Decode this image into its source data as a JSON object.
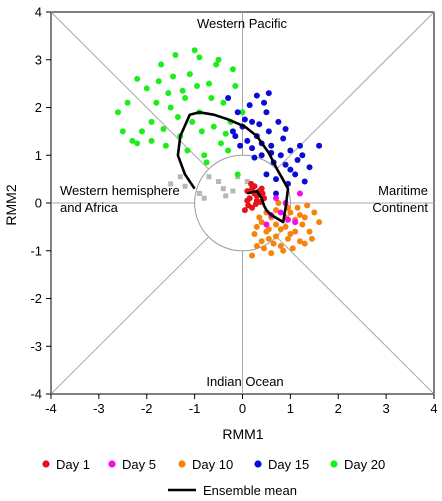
{
  "chart_data": {
    "type": "scatter",
    "xlabel": "RMM1",
    "ylabel": "RMM2",
    "xlim": [
      -4,
      4
    ],
    "ylim": [
      -4,
      4
    ],
    "xticks": [
      "-4",
      "-3",
      "-2",
      "-1",
      "0",
      "1",
      "2",
      "3",
      "4"
    ],
    "yticks": [
      "-4",
      "-3",
      "-2",
      "-1",
      "0",
      "1",
      "2",
      "3",
      "4"
    ],
    "grid": false,
    "inner_circle_radius": 1,
    "region_labels": {
      "top": "Western Pacific",
      "bottom": "Indian Ocean",
      "left_line1": "Western hemisphere",
      "left_line2": "and Africa",
      "right_line1": "Maritime",
      "right_line2": "Continent"
    },
    "legend_position": "bottom",
    "series": [
      {
        "name": "Day 1",
        "color": "#e8121a",
        "points": [
          [
            0.1,
            0.25
          ],
          [
            0.2,
            0.3
          ],
          [
            0.25,
            0.2
          ],
          [
            0.3,
            0.15
          ],
          [
            0.15,
            0.1
          ],
          [
            0.35,
            0.25
          ],
          [
            0.4,
            0.3
          ],
          [
            0.2,
            -0.1
          ],
          [
            0.1,
            0.05
          ],
          [
            0.3,
            0.05
          ],
          [
            0.25,
            0.35
          ],
          [
            0.45,
            0.1
          ],
          [
            0.05,
            -0.15
          ],
          [
            0.38,
            0.02
          ],
          [
            0.18,
            0.4
          ],
          [
            0.12,
            -0.05
          ],
          [
            0.42,
            0.2
          ],
          [
            0.28,
            -0.02
          ]
        ]
      },
      {
        "name": "Day 5",
        "color": "#f50af5",
        "points": [
          [
            0.8,
            -0.2
          ],
          [
            0.95,
            -0.35
          ],
          [
            1.1,
            -0.4
          ],
          [
            0.7,
            0.1
          ],
          [
            0.5,
            -0.45
          ],
          [
            1.2,
            0.2
          ],
          [
            0.9,
            0.0
          ],
          [
            0.6,
            -0.25
          ]
        ]
      },
      {
        "name": "Day 10",
        "color": "#f7830f",
        "points": [
          [
            0.3,
            -0.5
          ],
          [
            0.5,
            -0.6
          ],
          [
            0.7,
            -0.7
          ],
          [
            0.9,
            -0.5
          ],
          [
            1.1,
            -0.6
          ],
          [
            1.3,
            -0.3
          ],
          [
            1.5,
            -0.2
          ],
          [
            1.2,
            -0.8
          ],
          [
            0.8,
            -0.9
          ],
          [
            0.6,
            -0.3
          ],
          [
            0.4,
            -0.8
          ],
          [
            0.2,
            -1.1
          ],
          [
            0.45,
            -0.95
          ],
          [
            1.0,
            -0.2
          ],
          [
            1.4,
            -0.6
          ],
          [
            0.7,
            -0.45
          ],
          [
            0.95,
            -0.75
          ],
          [
            1.6,
            -0.4
          ],
          [
            0.55,
            -0.55
          ],
          [
            1.15,
            -0.1
          ],
          [
            0.35,
            -0.3
          ],
          [
            0.85,
            -1.0
          ],
          [
            1.25,
            -0.45
          ],
          [
            0.65,
            -0.85
          ],
          [
            1.05,
            -0.95
          ],
          [
            0.75,
            0.0
          ],
          [
            1.35,
            -0.05
          ],
          [
            0.5,
            -0.2
          ],
          [
            0.25,
            -0.65
          ],
          [
            1.45,
            -0.75
          ],
          [
            0.9,
            -0.3
          ],
          [
            0.6,
            -1.05
          ],
          [
            1.2,
            -0.25
          ],
          [
            0.4,
            -0.4
          ],
          [
            1.0,
            -0.65
          ],
          [
            0.8,
            -0.55
          ],
          [
            0.55,
            -0.75
          ],
          [
            1.3,
            -0.85
          ],
          [
            0.7,
            -0.15
          ],
          [
            1.1,
            -0.35
          ],
          [
            0.3,
            -0.9
          ],
          [
            0.95,
            -0.1
          ]
        ]
      },
      {
        "name": "Day 15",
        "color": "#0b0bd6",
        "points": [
          [
            -0.2,
            1.5
          ],
          [
            0.0,
            1.6
          ],
          [
            0.2,
            1.7
          ],
          [
            0.3,
            1.4
          ],
          [
            0.5,
            1.9
          ],
          [
            0.6,
            1.2
          ],
          [
            0.8,
            1.0
          ],
          [
            0.9,
            0.8
          ],
          [
            1.0,
            1.1
          ],
          [
            1.1,
            0.6
          ],
          [
            0.7,
            0.5
          ],
          [
            0.4,
            1.0
          ],
          [
            0.1,
            1.3
          ],
          [
            -0.1,
            1.9
          ],
          [
            0.45,
            2.1
          ],
          [
            0.55,
            1.5
          ],
          [
            1.2,
            1.2
          ],
          [
            0.25,
            0.95
          ],
          [
            0.65,
            0.85
          ],
          [
            1.4,
            0.75
          ],
          [
            1.6,
            1.2
          ],
          [
            0.85,
            1.35
          ],
          [
            0.15,
            2.05
          ],
          [
            -0.3,
            2.2
          ],
          [
            0.95,
            0.4
          ],
          [
            0.35,
            1.65
          ],
          [
            -0.05,
            1.2
          ],
          [
            0.75,
            1.7
          ],
          [
            1.15,
            0.9
          ],
          [
            0.5,
            0.6
          ],
          [
            1.3,
            0.45
          ],
          [
            0.05,
            1.75
          ],
          [
            0.6,
            1.05
          ],
          [
            0.9,
            1.55
          ],
          [
            -0.15,
            1.4
          ],
          [
            0.4,
            1.25
          ],
          [
            1.0,
            0.7
          ],
          [
            0.2,
            1.15
          ],
          [
            0.7,
            0.2
          ],
          [
            1.25,
            1.0
          ],
          [
            0.3,
            2.25
          ],
          [
            0.55,
            2.3
          ]
        ]
      },
      {
        "name": "Day 20",
        "color": "#1ced1c",
        "points": [
          [
            -2.6,
            1.9
          ],
          [
            -2.5,
            1.5
          ],
          [
            -2.3,
            1.3
          ],
          [
            -2.2,
            2.6
          ],
          [
            -2.0,
            2.4
          ],
          [
            -1.9,
            1.7
          ],
          [
            -1.8,
            2.1
          ],
          [
            -1.7,
            2.9
          ],
          [
            -1.6,
            1.2
          ],
          [
            -1.5,
            2.0
          ],
          [
            -1.4,
            3.1
          ],
          [
            -1.3,
            1.4
          ],
          [
            -1.2,
            2.2
          ],
          [
            -1.1,
            2.7
          ],
          [
            -1.0,
            3.2
          ],
          [
            -0.9,
            1.9
          ],
          [
            -0.8,
            1.0
          ],
          [
            -0.7,
            2.5
          ],
          [
            -0.6,
            1.6
          ],
          [
            -0.5,
            3.0
          ],
          [
            -0.4,
            2.1
          ],
          [
            -0.3,
            1.1
          ],
          [
            -0.2,
            2.8
          ],
          [
            -0.1,
            0.6
          ],
          [
            0.0,
            1.9
          ],
          [
            -1.9,
            1.3
          ],
          [
            -2.1,
            1.5
          ],
          [
            -1.75,
            2.55
          ],
          [
            -1.35,
            1.8
          ],
          [
            -1.15,
            1.1
          ],
          [
            -0.95,
            2.45
          ],
          [
            -0.75,
            0.85
          ],
          [
            -0.55,
            2.9
          ],
          [
            -0.35,
            1.45
          ],
          [
            -1.45,
            2.65
          ],
          [
            -0.85,
            1.5
          ],
          [
            -1.65,
            1.55
          ],
          [
            -1.05,
            1.7
          ],
          [
            -0.65,
            2.2
          ],
          [
            -0.25,
            1.7
          ],
          [
            -2.4,
            2.1
          ],
          [
            -0.45,
            1.25
          ],
          [
            -1.25,
            2.35
          ],
          [
            -0.15,
            2.45
          ],
          [
            -0.9,
            3.05
          ],
          [
            -1.55,
            2.3
          ],
          [
            -2.2,
            1.25
          ]
        ]
      },
      {
        "name": "",
        "color": "#b7b7b7",
        "points": [
          [
            -1.5,
            0.4
          ],
          [
            -1.2,
            0.35
          ],
          [
            -0.9,
            0.2
          ],
          [
            -0.7,
            0.55
          ],
          [
            -0.4,
            0.3
          ],
          [
            -0.35,
            0.15
          ],
          [
            -0.1,
            0.55
          ],
          [
            -0.2,
            0.25
          ],
          [
            -0.5,
            0.45
          ],
          [
            0.1,
            0.45
          ],
          [
            -0.8,
            0.1
          ],
          [
            -1.3,
            0.55
          ]
        ]
      }
    ],
    "ensemble_mean": {
      "name": "Ensemble mean",
      "color": "#000000",
      "points": [
        [
          0.1,
          0.2
        ],
        [
          0.3,
          0.25
        ],
        [
          0.4,
          0.1
        ],
        [
          0.45,
          -0.05
        ],
        [
          0.5,
          -0.15
        ],
        [
          0.6,
          -0.25
        ],
        [
          0.85,
          -0.4
        ],
        [
          0.9,
          -0.1
        ],
        [
          0.95,
          0.3
        ],
        [
          0.7,
          0.75
        ],
        [
          0.55,
          1.05
        ],
        [
          0.3,
          1.4
        ],
        [
          0.05,
          1.6
        ],
        [
          -0.3,
          1.75
        ],
        [
          -0.6,
          1.85
        ],
        [
          -0.9,
          1.9
        ],
        [
          -1.1,
          1.85
        ],
        [
          -1.3,
          1.4
        ],
        [
          -1.35,
          1.0
        ],
        [
          -1.2,
          0.6
        ],
        [
          -1.0,
          0.3
        ]
      ]
    }
  }
}
